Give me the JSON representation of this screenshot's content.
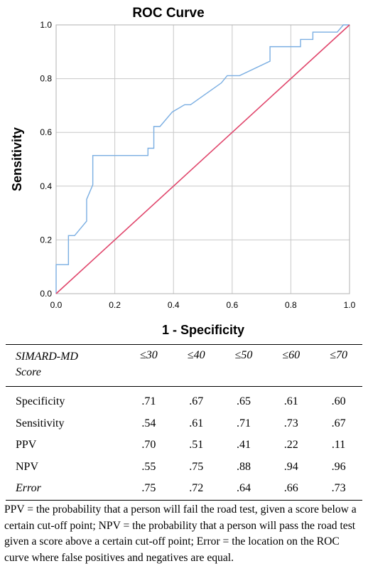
{
  "chart_data": {
    "type": "line",
    "title": "ROC Curve",
    "xlabel": "1 - Specificity",
    "ylabel": "Sensitivity",
    "xlim": [
      0,
      1
    ],
    "ylim": [
      0,
      1
    ],
    "xticks": [
      "0.0",
      "0.2",
      "0.4",
      "0.6",
      "0.8",
      "1.0"
    ],
    "yticks": [
      "0.0",
      "0.2",
      "0.4",
      "0.6",
      "0.8",
      "1.0"
    ],
    "grid": true,
    "colors": {
      "roc": "#7aaee2",
      "reference": "#e0456b",
      "grid": "#c8c8c8"
    },
    "series": [
      {
        "x": [
          0,
          0,
          0.042,
          0.042,
          0.063,
          0.104,
          0.104,
          0.125,
          0.125,
          0.313,
          0.313,
          0.333,
          0.333,
          0.354,
          0.396,
          0.438,
          0.458,
          0.563,
          0.583,
          0.625,
          0.729,
          0.729,
          0.813,
          0.833,
          0.833,
          0.875,
          0.875,
          0.958,
          0.979,
          1.0
        ],
        "y": [
          0,
          0.108,
          0.108,
          0.216,
          0.216,
          0.27,
          0.351,
          0.405,
          0.514,
          0.514,
          0.541,
          0.541,
          0.622,
          0.622,
          0.676,
          0.703,
          0.703,
          0.784,
          0.811,
          0.811,
          0.865,
          0.919,
          0.919,
          0.919,
          0.946,
          0.946,
          0.973,
          0.973,
          1.0,
          1.0
        ]
      },
      {
        "x": [
          0,
          1
        ],
        "y": [
          0,
          1
        ]
      }
    ]
  },
  "table": {
    "header_line1": "SIMARD-MD",
    "header_line2": "Score",
    "columns": [
      "≤30",
      "≤40",
      "≤50",
      "≤60",
      "≤70"
    ],
    "rows": [
      {
        "label": "Specificity",
        "values": [
          ".71",
          ".67",
          ".65",
          ".61",
          ".60"
        ]
      },
      {
        "label": "Sensitivity",
        "values": [
          ".54",
          ".61",
          ".71",
          ".73",
          ".67"
        ]
      },
      {
        "label": "PPV",
        "values": [
          ".70",
          ".51",
          ".41",
          ".22",
          ".11"
        ]
      },
      {
        "label": "NPV",
        "values": [
          ".55",
          ".75",
          ".88",
          ".94",
          ".96"
        ]
      },
      {
        "label": "Error",
        "values": [
          ".75",
          ".72",
          ".64",
          ".66",
          ".73"
        ]
      }
    ]
  },
  "note": "PPV = the probability that a person will fail the road test, given a score below a certain cut-off point; NPV = the probability that a person will pass the road test given a score above a certain cut-off point; Error = the location on the ROC curve where false positives and negatives are equal."
}
